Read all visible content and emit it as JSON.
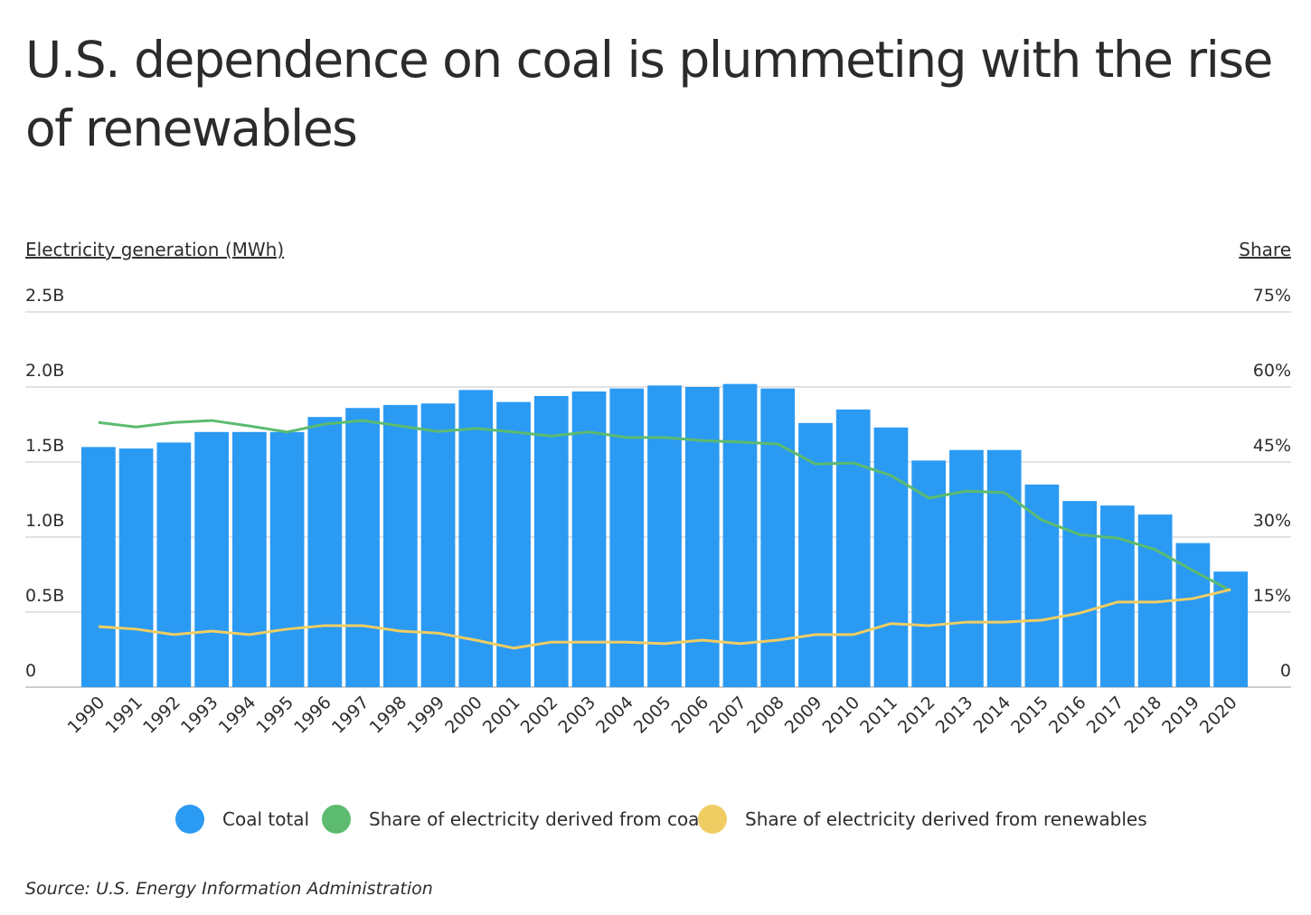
{
  "title": "U.S. dependence on coal is plummeting with the rise of renewables",
  "source": "Source:  U.S. Energy Information Administration",
  "colors": {
    "coal_total": "#2b9af3",
    "coal_share": "#5cbb6f",
    "renewables_share": "#f0cd62",
    "grid": "#d9d9d9"
  },
  "chart_data": {
    "type": "bar+line",
    "title": "U.S. dependence on coal is plummeting with the rise of renewables",
    "ylabel": "Electricity generation (MWh)",
    "y2label": "Share",
    "ylim": [
      0,
      2500000000
    ],
    "y2lim": [
      0,
      75
    ],
    "yticks": [
      "0",
      "0.5B",
      "1.0B",
      "1.5B",
      "2.0B",
      "2.5B"
    ],
    "y2ticks": [
      "0",
      "15%",
      "30%",
      "45%",
      "60%",
      "75%"
    ],
    "grid": true,
    "legend_position": "bottom",
    "categories": [
      "1990",
      "1991",
      "1992",
      "1993",
      "1994",
      "1995",
      "1996",
      "1997",
      "1998",
      "1999",
      "2000",
      "2001",
      "2002",
      "2003",
      "2004",
      "2005",
      "2006",
      "2007",
      "2008",
      "2009",
      "2010",
      "2011",
      "2012",
      "2013",
      "2014",
      "2015",
      "2016",
      "2017",
      "2018",
      "2019",
      "2020"
    ],
    "series": [
      {
        "name": "Coal total",
        "type": "bar",
        "axis": "left",
        "values": [
          1.6,
          1.59,
          1.63,
          1.7,
          1.7,
          1.7,
          1.8,
          1.86,
          1.88,
          1.89,
          1.98,
          1.9,
          1.94,
          1.97,
          1.99,
          2.01,
          2.0,
          2.02,
          1.99,
          1.76,
          1.85,
          1.73,
          1.51,
          1.58,
          1.58,
          1.35,
          1.24,
          1.21,
          1.15,
          0.96,
          0.77
        ],
        "unit": "billion MWh"
      },
      {
        "name": "Share of electricity derived from coal",
        "type": "line",
        "axis": "right",
        "values": [
          52.9,
          52.0,
          52.9,
          53.3,
          52.2,
          51.0,
          52.6,
          53.3,
          52.2,
          51.1,
          51.7,
          51.0,
          50.2,
          51.0,
          49.9,
          49.9,
          49.3,
          49.0,
          48.6,
          44.6,
          44.8,
          42.3,
          37.8,
          39.2,
          38.9,
          33.4,
          30.5,
          29.8,
          27.5,
          23.3,
          19.3
        ]
      },
      {
        "name": "Share of electricity derived from renewables",
        "type": "line",
        "axis": "right",
        "values": [
          12.1,
          11.6,
          10.5,
          11.2,
          10.5,
          11.6,
          12.3,
          12.3,
          11.2,
          10.8,
          9.4,
          7.8,
          9.0,
          9.0,
          9.0,
          8.7,
          9.4,
          8.7,
          9.4,
          10.5,
          10.5,
          12.7,
          12.3,
          13.0,
          13.0,
          13.4,
          14.8,
          17.0,
          17.0,
          17.7,
          19.5
        ]
      }
    ]
  }
}
